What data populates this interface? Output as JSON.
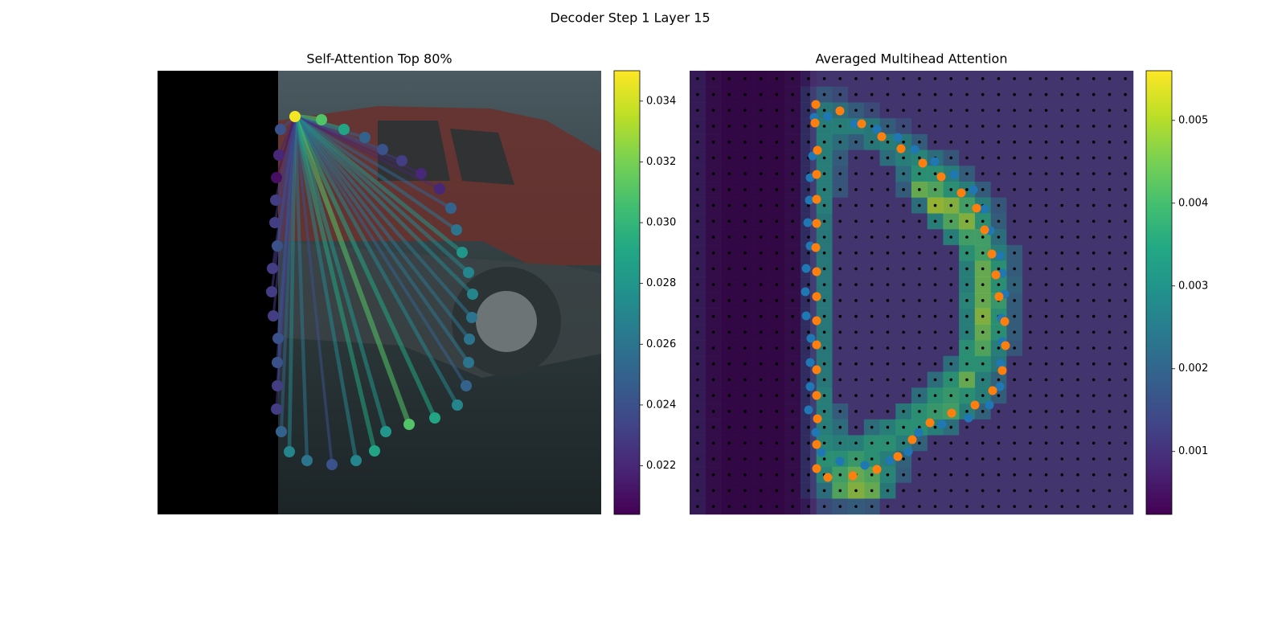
{
  "title": "Decoder Step 1 Layer 15",
  "chart_data": [
    {
      "type": "scatter",
      "title": "Self-Attention Top 80%",
      "xlim": [
        0,
        552
      ],
      "ylim": [
        552,
        0
      ],
      "x": [
        171,
        204,
        232,
        258,
        280,
        304,
        328,
        351,
        365,
        372,
        379,
        387,
        392,
        391,
        388,
        387,
        384,
        373,
        345,
        313,
        284,
        270,
        247,
        217,
        186,
        164,
        154,
        148,
        149,
        149,
        150,
        144,
        142,
        143,
        149,
        146,
        147,
        148,
        151,
        153
      ],
      "y": [
        57,
        61,
        73,
        83,
        98,
        112,
        128,
        147,
        171,
        198,
        226,
        251,
        278,
        307,
        334,
        363,
        392,
        416,
        432,
        440,
        449,
        473,
        485,
        490,
        485,
        474,
        449,
        421,
        392,
        363,
        333,
        305,
        275,
        246,
        218,
        189,
        161,
        133,
        105,
        73
      ],
      "values": [
        0.0348,
        0.031,
        0.029,
        0.025,
        0.024,
        0.023,
        0.022,
        0.022,
        0.025,
        0.026,
        0.028,
        0.027,
        0.027,
        0.026,
        0.026,
        0.026,
        0.025,
        0.027,
        0.029,
        0.031,
        0.028,
        0.029,
        0.027,
        0.024,
        0.026,
        0.027,
        0.025,
        0.023,
        0.023,
        0.024,
        0.024,
        0.023,
        0.023,
        0.023,
        0.024,
        0.023,
        0.023,
        0.021,
        0.022,
        0.024
      ],
      "clim": [
        0.0204,
        0.035
      ],
      "cticks": [
        0.022,
        0.024,
        0.026,
        0.028,
        {
          "value": 0.03,
          "label": "0.030"
        },
        0.032,
        0.034
      ]
    },
    {
      "type": "heatmap",
      "title": "Averaged Multihead Attention",
      "xlim": [
        0,
        552
      ],
      "ylim": [
        552,
        0
      ],
      "clim": [
        0.00024,
        0.0056
      ],
      "cticks": [
        0.001,
        0.002,
        0.003,
        0.004,
        0.005
      ],
      "values": [
        [
          0.0008,
          0.0005,
          0.0004,
          0.0004,
          0.0004,
          0.0004,
          0.0005,
          0.0008,
          0.001,
          0.001,
          0.001,
          0.001,
          0.001,
          0.001,
          0.001,
          0.001,
          0.001,
          0.001,
          0.001,
          0.001,
          0.001,
          0.001,
          0.001,
          0.001,
          0.001,
          0.001,
          0.001,
          0.001
        ],
        [
          0.0008,
          0.0005,
          0.0004,
          0.0004,
          0.0004,
          0.0004,
          0.0005,
          0.0012,
          0.0018,
          0.0015,
          0.001,
          0.001,
          0.001,
          0.001,
          0.001,
          0.001,
          0.001,
          0.001,
          0.001,
          0.001,
          0.001,
          0.001,
          0.001,
          0.001,
          0.001,
          0.001,
          0.001,
          0.001
        ],
        [
          0.0008,
          0.0005,
          0.0004,
          0.0004,
          0.0004,
          0.0004,
          0.0005,
          0.0012,
          0.0028,
          0.0025,
          0.002,
          0.0015,
          0.001,
          0.001,
          0.001,
          0.001,
          0.001,
          0.001,
          0.001,
          0.001,
          0.001,
          0.001,
          0.001,
          0.001,
          0.001,
          0.001,
          0.001,
          0.001
        ],
        [
          0.0008,
          0.0005,
          0.0004,
          0.0004,
          0.0004,
          0.0004,
          0.0005,
          0.0012,
          0.003,
          0.003,
          0.003,
          0.0028,
          0.002,
          0.0015,
          0.001,
          0.001,
          0.001,
          0.001,
          0.001,
          0.001,
          0.001,
          0.001,
          0.001,
          0.001,
          0.001,
          0.001,
          0.001,
          0.001
        ],
        [
          0.0008,
          0.0005,
          0.0004,
          0.0004,
          0.0004,
          0.0004,
          0.0005,
          0.0012,
          0.003,
          0.0025,
          0.002,
          0.0028,
          0.003,
          0.0028,
          0.002,
          0.001,
          0.001,
          0.001,
          0.001,
          0.001,
          0.001,
          0.001,
          0.001,
          0.001,
          0.001,
          0.001,
          0.001,
          0.001
        ],
        [
          0.0008,
          0.0005,
          0.0004,
          0.0004,
          0.0004,
          0.0004,
          0.0005,
          0.0012,
          0.003,
          0.002,
          0.001,
          0.001,
          0.0025,
          0.003,
          0.0032,
          0.0025,
          0.0018,
          0.001,
          0.001,
          0.001,
          0.001,
          0.001,
          0.001,
          0.001,
          0.001,
          0.001,
          0.001,
          0.001
        ],
        [
          0.0008,
          0.0005,
          0.0004,
          0.0004,
          0.0004,
          0.0004,
          0.0005,
          0.0012,
          0.003,
          0.0018,
          0.001,
          0.001,
          0.001,
          0.0025,
          0.0035,
          0.0035,
          0.003,
          0.002,
          0.001,
          0.001,
          0.001,
          0.001,
          0.001,
          0.001,
          0.001,
          0.001,
          0.001,
          0.001
        ],
        [
          0.0008,
          0.0005,
          0.0004,
          0.0004,
          0.0004,
          0.0004,
          0.0005,
          0.0012,
          0.003,
          0.0018,
          0.001,
          0.001,
          0.001,
          0.002,
          0.0045,
          0.0042,
          0.0035,
          0.003,
          0.002,
          0.001,
          0.001,
          0.001,
          0.001,
          0.001,
          0.001,
          0.001,
          0.001,
          0.001
        ],
        [
          0.0008,
          0.0005,
          0.0004,
          0.0004,
          0.0004,
          0.0004,
          0.0005,
          0.0012,
          0.003,
          0.001,
          0.001,
          0.001,
          0.001,
          0.001,
          0.0025,
          0.005,
          0.0048,
          0.004,
          0.003,
          0.0018,
          0.001,
          0.001,
          0.001,
          0.001,
          0.001,
          0.001,
          0.001,
          0.001
        ],
        [
          0.0008,
          0.0005,
          0.0004,
          0.0004,
          0.0004,
          0.0004,
          0.0005,
          0.0012,
          0.0028,
          0.001,
          0.001,
          0.001,
          0.001,
          0.001,
          0.001,
          0.003,
          0.0042,
          0.0048,
          0.0035,
          0.002,
          0.001,
          0.001,
          0.001,
          0.001,
          0.001,
          0.001,
          0.001,
          0.001
        ],
        [
          0.0008,
          0.0005,
          0.0004,
          0.0004,
          0.0004,
          0.0004,
          0.0005,
          0.0012,
          0.0028,
          0.001,
          0.001,
          0.001,
          0.001,
          0.001,
          0.001,
          0.001,
          0.003,
          0.004,
          0.004,
          0.0025,
          0.001,
          0.001,
          0.001,
          0.001,
          0.001,
          0.001,
          0.001,
          0.001
        ],
        [
          0.0008,
          0.0005,
          0.0004,
          0.0004,
          0.0004,
          0.0004,
          0.0005,
          0.0012,
          0.0028,
          0.001,
          0.001,
          0.001,
          0.001,
          0.001,
          0.001,
          0.001,
          0.001,
          0.0035,
          0.004,
          0.003,
          0.002,
          0.001,
          0.001,
          0.001,
          0.001,
          0.001,
          0.001,
          0.001
        ],
        [
          0.0008,
          0.0005,
          0.0004,
          0.0004,
          0.0004,
          0.0004,
          0.0005,
          0.0012,
          0.0028,
          0.001,
          0.001,
          0.001,
          0.001,
          0.001,
          0.001,
          0.001,
          0.001,
          0.003,
          0.0045,
          0.0035,
          0.002,
          0.001,
          0.001,
          0.001,
          0.001,
          0.001,
          0.001,
          0.001
        ],
        [
          0.0008,
          0.0005,
          0.0004,
          0.0004,
          0.0004,
          0.0004,
          0.0005,
          0.0012,
          0.0028,
          0.001,
          0.001,
          0.001,
          0.001,
          0.001,
          0.001,
          0.001,
          0.001,
          0.003,
          0.0045,
          0.0035,
          0.0022,
          0.001,
          0.001,
          0.001,
          0.001,
          0.001,
          0.001,
          0.001
        ],
        [
          0.0008,
          0.0005,
          0.0004,
          0.0004,
          0.0004,
          0.0004,
          0.0005,
          0.0012,
          0.0028,
          0.001,
          0.001,
          0.001,
          0.001,
          0.001,
          0.001,
          0.001,
          0.001,
          0.0032,
          0.0045,
          0.0038,
          0.002,
          0.001,
          0.001,
          0.001,
          0.001,
          0.001,
          0.001,
          0.001
        ],
        [
          0.0008,
          0.0005,
          0.0004,
          0.0004,
          0.0004,
          0.0004,
          0.0005,
          0.0012,
          0.0028,
          0.001,
          0.001,
          0.001,
          0.001,
          0.001,
          0.001,
          0.001,
          0.001,
          0.003,
          0.0048,
          0.0035,
          0.002,
          0.001,
          0.001,
          0.001,
          0.001,
          0.001,
          0.001,
          0.001
        ],
        [
          0.0008,
          0.0005,
          0.0004,
          0.0004,
          0.0004,
          0.0004,
          0.0005,
          0.0012,
          0.0028,
          0.001,
          0.001,
          0.001,
          0.001,
          0.001,
          0.001,
          0.001,
          0.001,
          0.003,
          0.0045,
          0.0035,
          0.002,
          0.001,
          0.001,
          0.001,
          0.001,
          0.001,
          0.001,
          0.001
        ],
        [
          0.0008,
          0.0005,
          0.0004,
          0.0004,
          0.0004,
          0.0004,
          0.0005,
          0.0012,
          0.0028,
          0.001,
          0.001,
          0.001,
          0.001,
          0.001,
          0.001,
          0.001,
          0.001,
          0.0035,
          0.0042,
          0.003,
          0.0018,
          0.001,
          0.001,
          0.001,
          0.001,
          0.001,
          0.001,
          0.001
        ],
        [
          0.0008,
          0.0005,
          0.0004,
          0.0004,
          0.0004,
          0.0004,
          0.0005,
          0.0012,
          0.0028,
          0.001,
          0.001,
          0.001,
          0.001,
          0.001,
          0.001,
          0.001,
          0.0025,
          0.0035,
          0.0035,
          0.0028,
          0.001,
          0.001,
          0.001,
          0.001,
          0.001,
          0.001,
          0.001,
          0.001
        ],
        [
          0.0008,
          0.0005,
          0.0004,
          0.0004,
          0.0004,
          0.0004,
          0.0005,
          0.0012,
          0.0028,
          0.001,
          0.001,
          0.001,
          0.001,
          0.001,
          0.001,
          0.0025,
          0.0035,
          0.0045,
          0.003,
          0.0022,
          0.001,
          0.001,
          0.001,
          0.001,
          0.001,
          0.001,
          0.001,
          0.001
        ],
        [
          0.0008,
          0.0005,
          0.0004,
          0.0004,
          0.0004,
          0.0004,
          0.0005,
          0.0012,
          0.003,
          0.001,
          0.001,
          0.001,
          0.001,
          0.001,
          0.0025,
          0.0035,
          0.0038,
          0.0035,
          0.003,
          0.002,
          0.001,
          0.001,
          0.001,
          0.001,
          0.001,
          0.001,
          0.001,
          0.001
        ],
        [
          0.0008,
          0.0005,
          0.0004,
          0.0004,
          0.0004,
          0.0004,
          0.0005,
          0.0012,
          0.003,
          0.002,
          0.001,
          0.001,
          0.001,
          0.0028,
          0.0035,
          0.0038,
          0.004,
          0.003,
          0.0022,
          0.001,
          0.001,
          0.001,
          0.001,
          0.001,
          0.001,
          0.001,
          0.001,
          0.001
        ],
        [
          0.0008,
          0.0005,
          0.0004,
          0.0004,
          0.0004,
          0.0004,
          0.0005,
          0.0012,
          0.003,
          0.0025,
          0.001,
          0.0025,
          0.003,
          0.0035,
          0.0035,
          0.003,
          0.0025,
          0.001,
          0.001,
          0.001,
          0.001,
          0.001,
          0.001,
          0.001,
          0.001,
          0.001,
          0.001,
          0.001
        ],
        [
          0.0008,
          0.0005,
          0.0004,
          0.0004,
          0.0004,
          0.0004,
          0.0005,
          0.0012,
          0.0032,
          0.003,
          0.003,
          0.0035,
          0.0035,
          0.003,
          0.0022,
          0.001,
          0.001,
          0.001,
          0.001,
          0.001,
          0.001,
          0.001,
          0.001,
          0.001,
          0.001,
          0.001,
          0.001,
          0.001
        ],
        [
          0.0008,
          0.0005,
          0.0004,
          0.0004,
          0.0004,
          0.0004,
          0.0005,
          0.0012,
          0.0035,
          0.0035,
          0.0038,
          0.0035,
          0.003,
          0.0022,
          0.001,
          0.001,
          0.001,
          0.001,
          0.001,
          0.001,
          0.001,
          0.001,
          0.001,
          0.001,
          0.001,
          0.001,
          0.001,
          0.001
        ],
        [
          0.0008,
          0.0005,
          0.0004,
          0.0004,
          0.0004,
          0.0004,
          0.0005,
          0.0012,
          0.0032,
          0.004,
          0.0045,
          0.0042,
          0.0032,
          0.002,
          0.001,
          0.001,
          0.001,
          0.001,
          0.001,
          0.001,
          0.001,
          0.001,
          0.001,
          0.001,
          0.001,
          0.001,
          0.001,
          0.001
        ],
        [
          0.0008,
          0.0005,
          0.0004,
          0.0004,
          0.0004,
          0.0004,
          0.0005,
          0.0012,
          0.0025,
          0.0042,
          0.0048,
          0.0045,
          0.0028,
          0.001,
          0.001,
          0.001,
          0.001,
          0.001,
          0.001,
          0.001,
          0.001,
          0.001,
          0.001,
          0.001,
          0.001,
          0.001,
          0.001,
          0.001
        ],
        [
          0.0008,
          0.0005,
          0.0004,
          0.0004,
          0.0004,
          0.0004,
          0.0005,
          0.0008,
          0.0015,
          0.0018,
          0.002,
          0.0018,
          0.001,
          0.001,
          0.001,
          0.001,
          0.001,
          0.001,
          0.001,
          0.001,
          0.001,
          0.001,
          0.001,
          0.001,
          0.001,
          0.001,
          0.001,
          0.001
        ]
      ],
      "series": [
        {
          "color": "#1f77b4",
          "x": [
            172,
            205,
            233,
            259,
            280,
            305,
            329,
            353,
            367,
            374,
            386,
            389,
            392,
            388,
            389,
            387,
            386,
            373,
            347,
            314,
            285,
            272,
            249,
            218,
            187,
            164,
            157,
            148,
            150,
            150,
            151,
            145,
            144,
            145,
            150,
            147,
            149,
            150,
            153,
            155
          ],
          "y": [
            57,
            66,
            73,
            83,
            98,
            113,
            129,
            148,
            172,
            199,
            230,
            252,
            278,
            308,
            337,
            364,
            393,
            416,
            432,
            440,
            450,
            474,
            485,
            491,
            486,
            475,
            450,
            422,
            393,
            363,
            333,
            305,
            275,
            246,
            218,
            189,
            161,
            133,
            106,
            58
          ]
        },
        {
          "color": "#ff7f0e",
          "x": [
            157,
            187,
            214,
            239,
            263,
            290,
            313,
            338,
            357,
            367,
            376,
            381,
            385,
            392,
            393,
            389,
            377,
            355,
            326,
            299,
            277,
            259,
            233,
            203,
            172,
            158,
            158,
            159,
            158,
            158,
            158,
            158,
            158,
            158,
            157,
            158,
            158,
            158,
            159,
            156
          ],
          "y": [
            42,
            50,
            66,
            82,
            97,
            115,
            132,
            152,
            171,
            198,
            228,
            254,
            281,
            312,
            342,
            373,
            398,
            416,
            426,
            438,
            459,
            480,
            496,
            504,
            506,
            495,
            465,
            433,
            404,
            372,
            341,
            311,
            281,
            250,
            220,
            190,
            160,
            129,
            99,
            65
          ]
        }
      ]
    }
  ]
}
